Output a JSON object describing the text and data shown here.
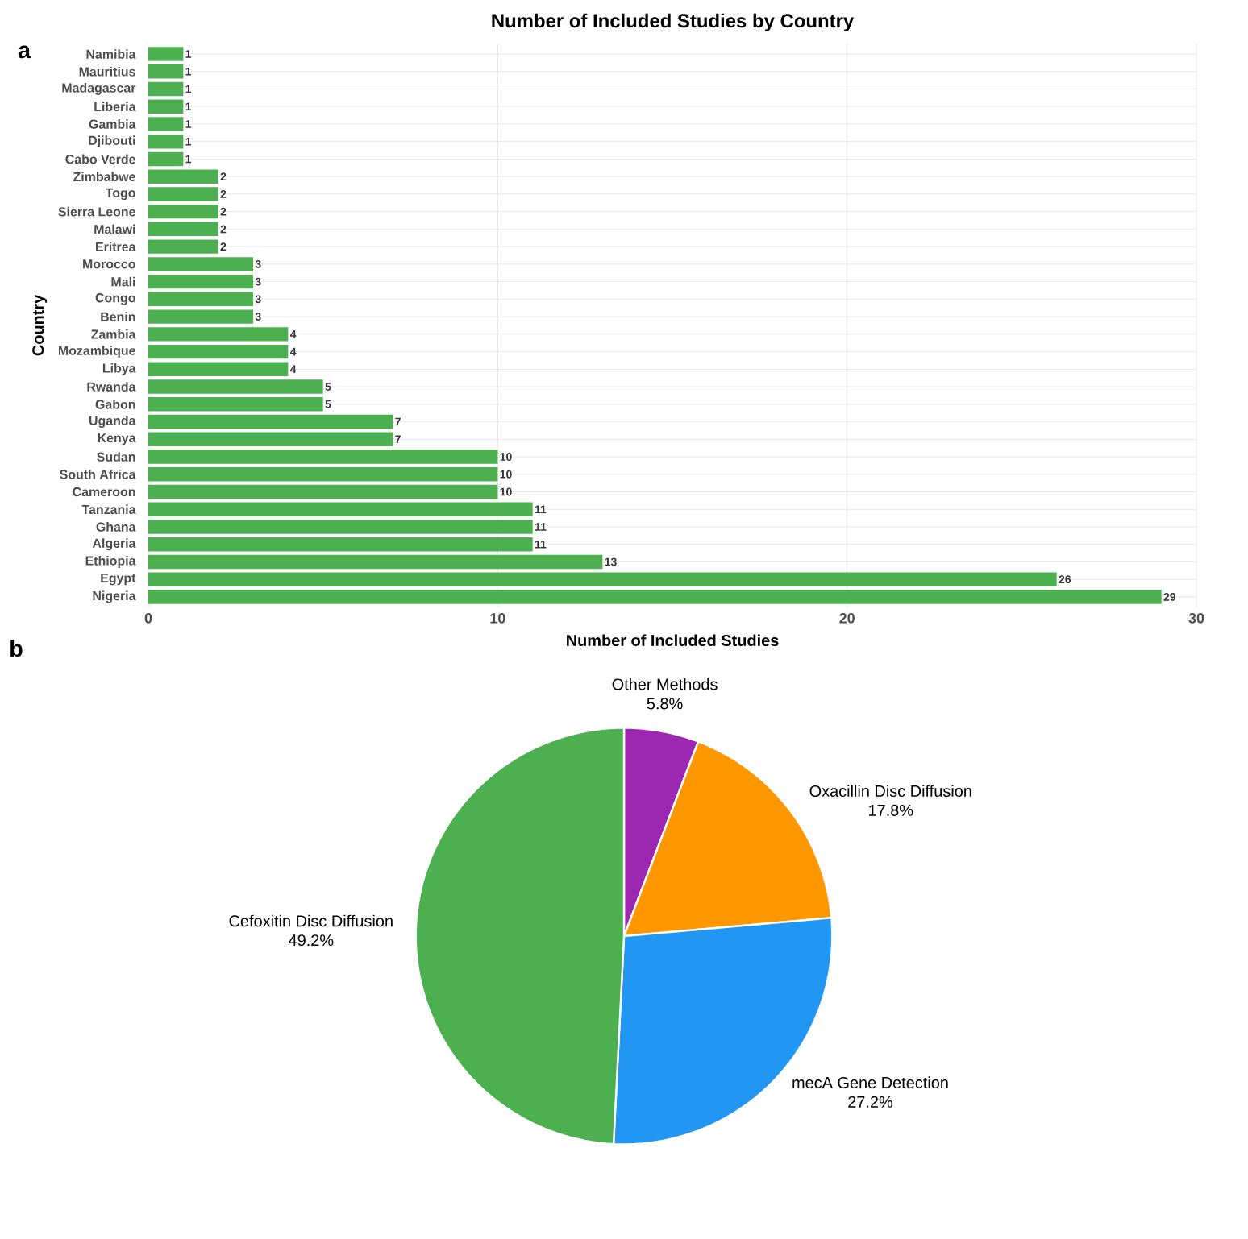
{
  "chart_data": [
    {
      "type": "bar",
      "orientation": "horizontal",
      "title": "Number of Included Studies by Country",
      "xlabel": "Number of Included Studies",
      "ylabel": "Country",
      "categories": [
        "Namibia",
        "Mauritius",
        "Madagascar",
        "Liberia",
        "Gambia",
        "Djibouti",
        "Cabo Verde",
        "Zimbabwe",
        "Togo",
        "Sierra Leone",
        "Malawi",
        "Eritrea",
        "Morocco",
        "Mali",
        "Congo",
        "Benin",
        "Zambia",
        "Mozambique",
        "Libya",
        "Rwanda",
        "Gabon",
        "Uganda",
        "Kenya",
        "Sudan",
        "South Africa",
        "Cameroon",
        "Tanzania",
        "Ghana",
        "Algeria",
        "Ethiopia",
        "Egypt",
        "Nigeria"
      ],
      "values": [
        1,
        1,
        1,
        1,
        1,
        1,
        1,
        2,
        2,
        2,
        2,
        2,
        3,
        3,
        3,
        3,
        4,
        4,
        4,
        5,
        5,
        7,
        7,
        10,
        10,
        10,
        11,
        11,
        11,
        13,
        26,
        29
      ],
      "color": "#4caf50",
      "xlim": [
        0,
        30
      ],
      "xticks": [
        0,
        10,
        20,
        30
      ],
      "grid": true,
      "data_labels": true,
      "annotations": [
        "a"
      ]
    },
    {
      "type": "pie",
      "categories": [
        "Other Methods",
        "Oxacillin Disc Diffusion",
        "mecA Gene Detection",
        "Cefoxitin Disc Diffusion"
      ],
      "values": [
        5.8,
        17.8,
        27.2,
        49.2
      ],
      "value_labels": [
        "5.8%",
        "17.8%",
        "27.2%",
        "49.2%"
      ],
      "colors": [
        "#9c27b0",
        "#ff9800",
        "#2196f3",
        "#4caf50"
      ],
      "annotations": [
        "b"
      ]
    }
  ]
}
